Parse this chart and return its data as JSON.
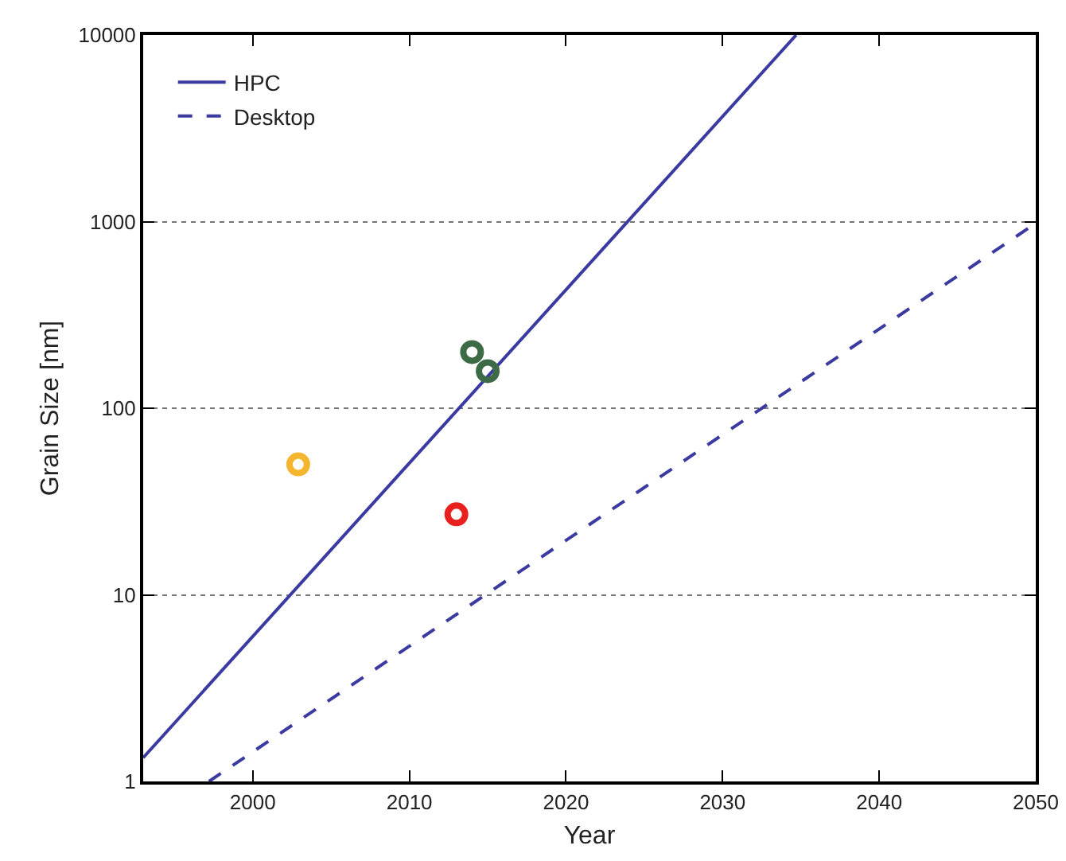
{
  "chart_data": {
    "type": "line",
    "xlabel": "Year",
    "ylabel": "Grain Size [nm]",
    "log": "y",
    "grid": "y",
    "legend": "top left",
    "xlim": [
      1993,
      2050
    ],
    "xticks": [
      2000,
      2010,
      2020,
      2030,
      2040,
      2050
    ],
    "ylim": [
      1,
      10000
    ],
    "yticks": [
      1,
      10,
      100,
      1000,
      10000
    ],
    "series": [
      {
        "name": "HPC",
        "color": "#3a3aa0",
        "x": [
          1993,
          2034.7
        ],
        "values": [
          1.34,
          10000
        ],
        "line_style": "solid"
      },
      {
        "name": "Desktop",
        "color": "#3a3aa0",
        "x": [
          1997.2,
          2050
        ],
        "values": [
          1,
          980
        ],
        "line_style": "dashed"
      },
      {
        "type": "scatter",
        "marker": "circle",
        "x": [
          2002.9,
          2013,
          2014,
          2015
        ],
        "values": [
          50,
          27,
          200,
          158
        ],
        "colors": [
          "#f5b52e",
          "#e8201e",
          "#3d6b45",
          "#3d6b45"
        ]
      }
    ]
  }
}
